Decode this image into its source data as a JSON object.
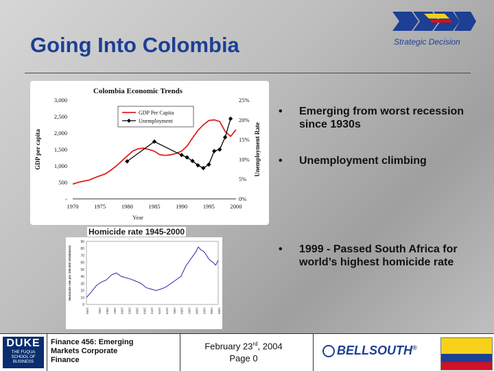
{
  "slide": {
    "title": "Going Into Colombia",
    "section_label": "Strategic Decision",
    "bullets": [
      "Emerging from worst recession since 1930s",
      "Unemployment climbing",
      "1999 - Passed South Africa for world’s highest homicide rate"
    ],
    "bullet_symbol": "•"
  },
  "colors": {
    "title_blue": "#1d3f94",
    "gdp_line": "#e0201e",
    "unemployment_line": "#000000",
    "homicide_line": "#2a2aa8",
    "flag_yellow": "#f7d117",
    "flag_blue": "#1d3f94",
    "flag_red": "#ce1126"
  },
  "chart_data": [
    {
      "type": "line",
      "title": "Colombia Economic Trends",
      "xlabel": "Year",
      "ylabel": "GDP per capita",
      "y2label": "Unemployment Rate",
      "xlim": [
        1970,
        2000
      ],
      "ylim": [
        0,
        3000
      ],
      "y2lim": [
        0,
        25
      ],
      "x_ticks": [
        1970,
        1975,
        1980,
        1985,
        1990,
        1995,
        2000
      ],
      "x_tick_labels": [
        "1970",
        "1975",
        "1980",
        "1985",
        "1990",
        "1995",
        "2000"
      ],
      "y_ticks": [
        0,
        500,
        1000,
        1500,
        2000,
        2500,
        3000
      ],
      "y_tick_labels": [
        "-",
        "500",
        "1,000",
        "1,500",
        "2,000",
        "2,500",
        "3,000"
      ],
      "y2_ticks": [
        0,
        5,
        10,
        15,
        20,
        25
      ],
      "y2_tick_labels": [
        "0%",
        "5%",
        "10%",
        "15%",
        "20%",
        "25%"
      ],
      "legend_position": "top-left",
      "grid": false,
      "series": [
        {
          "name": "GDP Per Capita",
          "axis": "left",
          "x": [
            1970,
            1971,
            1972,
            1973,
            1974,
            1975,
            1976,
            1977,
            1978,
            1979,
            1980,
            1981,
            1982,
            1983,
            1984,
            1985,
            1986,
            1987,
            1988,
            1989,
            1990,
            1991,
            1992,
            1993,
            1994,
            1995,
            1996,
            1997,
            1998,
            1999,
            2000
          ],
          "y": [
            450,
            500,
            540,
            570,
            640,
            700,
            760,
            870,
            1000,
            1150,
            1300,
            1450,
            1520,
            1540,
            1500,
            1450,
            1340,
            1320,
            1340,
            1380,
            1450,
            1600,
            1850,
            2080,
            2250,
            2380,
            2400,
            2350,
            2050,
            1900,
            2100
          ]
        },
        {
          "name": "Unemployment",
          "axis": "right",
          "x": [
            1980,
            1985,
            1990,
            1991,
            1992,
            1993,
            1994,
            1995,
            1996,
            1997,
            1998,
            1999
          ],
          "y": [
            9.5,
            14.5,
            11.1,
            10.5,
            9.6,
            8.5,
            7.8,
            8.7,
            12.1,
            12.5,
            15.6,
            20.3
          ]
        }
      ]
    },
    {
      "type": "line",
      "title": "Homicide rate 1945-2000",
      "xlabel": "",
      "ylabel": "Homicide rate per 100,000 inhabitants",
      "xlim": [
        1946,
        1999
      ],
      "ylim": [
        0,
        90
      ],
      "x_ticks": [
        1946,
        1951,
        1954,
        1957,
        1960,
        1963,
        1966,
        1969,
        1972,
        1975,
        1978,
        1981,
        1984,
        1987,
        1990,
        1993,
        1996,
        1999
      ],
      "x_tick_labels": [
        "1946",
        "1951",
        "1954",
        "1957",
        "1960",
        "1963",
        "1966",
        "1969",
        "1972",
        "1975",
        "1978",
        "1981",
        "1984",
        "1987",
        "1990",
        "1993",
        "1996",
        "1999"
      ],
      "y_ticks": [
        0,
        10,
        20,
        30,
        40,
        50,
        60,
        70,
        80,
        90
      ],
      "y_tick_labels": [
        "0",
        "10",
        "20",
        "30",
        "40",
        "50",
        "60",
        "70",
        "80",
        "90"
      ],
      "grid": false,
      "series": [
        {
          "name": "",
          "x": [
            1946,
            1948,
            1950,
            1952,
            1954,
            1956,
            1958,
            1960,
            1962,
            1964,
            1966,
            1968,
            1970,
            1972,
            1974,
            1976,
            1978,
            1980,
            1982,
            1984,
            1986,
            1988,
            1990,
            1991,
            1992,
            1993,
            1994,
            1995,
            1996,
            1997,
            1998,
            1999
          ],
          "y": [
            10,
            18,
            27,
            32,
            35,
            42,
            45,
            40,
            38,
            36,
            33,
            30,
            24,
            22,
            20,
            22,
            25,
            30,
            35,
            40,
            55,
            65,
            75,
            82,
            78,
            76,
            72,
            66,
            62,
            60,
            56,
            63
          ]
        }
      ]
    }
  ],
  "footer": {
    "logo_main": "DUKE",
    "logo_sub": "THE FUQUA SCHOOL OF BUSINESS",
    "course_lines": [
      "Finance 456: Emerging",
      "Markets Corporate",
      "Finance"
    ],
    "date_prefix": "February 23",
    "date_sup": "rd",
    "date_suffix": ", 2004",
    "page_label": "Page 0",
    "sponsor": "BELLSOUTH",
    "trademark": "®"
  }
}
